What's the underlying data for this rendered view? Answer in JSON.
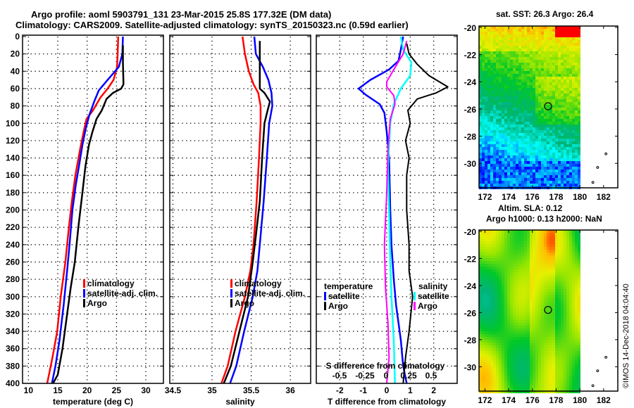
{
  "header": {
    "title_line1": "Argo profile: aoml 5903791_131 23-Mar-2015 25.8S 177.32E (DM data)",
    "title_line2": "Climatology: CARS2009. Satellite-adjusted climatology: synTS_20150323.nc (0.59d earlier)"
  },
  "credit": "©IMOS 14-Dec-2018 04:04:40",
  "colors": {
    "climatology": "#ff0000",
    "satellite": "#0000ff",
    "argo": "#000000",
    "sal_satellite": "#00ffff",
    "sal_argo": "#ff00ff"
  },
  "chart_data": [
    {
      "type": "line",
      "name": "temperature-profile",
      "xlabel": "temperature (deg C)",
      "ylabel": "",
      "xlim": [
        9,
        33
      ],
      "ylim": [
        400,
        0
      ],
      "xticks": [
        10,
        15,
        20,
        25,
        30
      ],
      "yticks": [
        0,
        20,
        40,
        60,
        80,
        100,
        120,
        140,
        160,
        180,
        200,
        220,
        240,
        260,
        280,
        300,
        320,
        340,
        360,
        380,
        400
      ],
      "grid": true,
      "legend": {
        "placement": "lower-right",
        "entries": [
          "climatology",
          "satellite-adj. clim.",
          "Argo"
        ]
      },
      "series": [
        {
          "name": "climatology",
          "color_key": "climatology",
          "points": [
            [
              25.3,
              0
            ],
            [
              25.2,
              20
            ],
            [
              25.1,
              35
            ],
            [
              24.5,
              50
            ],
            [
              23.5,
              60
            ],
            [
              22.3,
              70
            ],
            [
              21.0,
              85
            ],
            [
              19.9,
              95
            ],
            [
              19.4,
              110
            ],
            [
              18.8,
              130
            ],
            [
              18.0,
              160
            ],
            [
              17.4,
              190
            ],
            [
              16.9,
              220
            ],
            [
              16.3,
              260
            ],
            [
              15.5,
              300
            ],
            [
              14.9,
              340
            ],
            [
              14.1,
              370
            ],
            [
              13.2,
              400
            ]
          ]
        },
        {
          "name": "satellite-adj. clim.",
          "color_key": "satellite",
          "points": [
            [
              26.1,
              0
            ],
            [
              26.0,
              20
            ],
            [
              25.4,
              35
            ],
            [
              23.5,
              50
            ],
            [
              22.0,
              62
            ],
            [
              21.2,
              75
            ],
            [
              20.4,
              90
            ],
            [
              19.8,
              105
            ],
            [
              19.2,
              125
            ],
            [
              18.6,
              150
            ],
            [
              18.1,
              170
            ],
            [
              17.5,
              200
            ],
            [
              17.0,
              240
            ],
            [
              16.6,
              270
            ],
            [
              16.0,
              310
            ],
            [
              15.3,
              350
            ],
            [
              14.6,
              380
            ],
            [
              14.0,
              400
            ]
          ]
        },
        {
          "name": "Argo",
          "color_key": "argo",
          "points": [
            [
              26.1,
              10
            ],
            [
              26.1,
              30
            ],
            [
              26.2,
              55
            ],
            [
              25.8,
              60
            ],
            [
              24.4,
              65
            ],
            [
              23.3,
              72
            ],
            [
              22.5,
              85
            ],
            [
              21.6,
              95
            ],
            [
              20.9,
              110
            ],
            [
              20.3,
              125
            ],
            [
              19.7,
              150
            ],
            [
              19.2,
              180
            ],
            [
              18.5,
              220
            ],
            [
              17.9,
              260
            ],
            [
              17.2,
              290
            ],
            [
              16.6,
              320
            ],
            [
              15.8,
              360
            ],
            [
              15.0,
              390
            ],
            [
              14.2,
              400
            ]
          ]
        }
      ]
    },
    {
      "type": "line",
      "name": "salinity-profile",
      "xlabel": "salinity",
      "ylabel": "",
      "xlim": [
        34.46,
        36.26
      ],
      "ylim": [
        400,
        0
      ],
      "xticks": [
        34.5,
        35,
        35.5,
        36
      ],
      "grid": true,
      "legend": {
        "placement": "lower-right",
        "entries": [
          "climatology",
          "satellite-adj. clim.",
          "Argo"
        ]
      },
      "series": [
        {
          "name": "climatology",
          "color_key": "climatology",
          "points": [
            [
              35.39,
              0
            ],
            [
              35.42,
              20
            ],
            [
              35.47,
              40
            ],
            [
              35.53,
              55
            ],
            [
              35.59,
              65
            ],
            [
              35.62,
              80
            ],
            [
              35.62,
              100
            ],
            [
              35.6,
              140
            ],
            [
              35.57,
              190
            ],
            [
              35.53,
              240
            ],
            [
              35.49,
              270
            ],
            [
              35.42,
              300
            ],
            [
              35.3,
              340
            ],
            [
              35.2,
              380
            ],
            [
              35.12,
              400
            ]
          ]
        },
        {
          "name": "satellite-adj. clim.",
          "color_key": "satellite",
          "points": [
            [
              35.54,
              0
            ],
            [
              35.56,
              20
            ],
            [
              35.65,
              35
            ],
            [
              35.72,
              50
            ],
            [
              35.76,
              65
            ],
            [
              35.77,
              80
            ],
            [
              35.73,
              100
            ],
            [
              35.7,
              140
            ],
            [
              35.66,
              190
            ],
            [
              35.62,
              230
            ],
            [
              35.58,
              270
            ],
            [
              35.52,
              300
            ],
            [
              35.41,
              340
            ],
            [
              35.31,
              380
            ],
            [
              35.23,
              400
            ]
          ]
        },
        {
          "name": "Argo",
          "color_key": "argo",
          "points": [
            [
              35.61,
              5
            ],
            [
              35.61,
              20
            ],
            [
              35.61,
              40
            ],
            [
              35.61,
              60
            ],
            [
              35.67,
              65
            ],
            [
              35.74,
              75
            ],
            [
              35.71,
              85
            ],
            [
              35.67,
              100
            ],
            [
              35.64,
              140
            ],
            [
              35.61,
              190
            ],
            [
              35.56,
              230
            ],
            [
              35.52,
              260
            ],
            [
              35.46,
              300
            ],
            [
              35.35,
              340
            ],
            [
              35.24,
              380
            ],
            [
              35.15,
              400
            ]
          ]
        }
      ]
    },
    {
      "type": "line",
      "name": "difference-profile",
      "xlabel": "T difference from climatology",
      "xlim": [
        -3,
        3
      ],
      "ylim": [
        400,
        0
      ],
      "xticks": [
        -2,
        -1,
        0,
        1,
        2
      ],
      "secondary_xlabel": "S difference from climatology",
      "secondary_xticks": [
        "-0.5",
        "-0.25",
        "0",
        "0.25",
        "0.5"
      ],
      "grid": true,
      "legend": {
        "placement": "lower-center",
        "temperature_title": "temperature",
        "temperature_entries": [
          "satellite",
          "Argo"
        ],
        "salinity_title": "salinity",
        "salinity_entries": [
          "satellite",
          "Argo"
        ]
      },
      "series": [
        {
          "name": "temperature satellite",
          "color_key": "satellite",
          "points": [
            [
              0.7,
              0
            ],
            [
              0.6,
              15
            ],
            [
              0.5,
              28
            ],
            [
              0.1,
              38
            ],
            [
              -0.7,
              50
            ],
            [
              -1.2,
              60
            ],
            [
              -0.9,
              67
            ],
            [
              -0.3,
              78
            ],
            [
              -0.1,
              88
            ],
            [
              0.0,
              110
            ],
            [
              0.1,
              140
            ],
            [
              0.15,
              200
            ],
            [
              0.2,
              240
            ],
            [
              0.3,
              280
            ],
            [
              0.4,
              310
            ],
            [
              0.6,
              350
            ],
            [
              0.7,
              380
            ],
            [
              0.85,
              400
            ]
          ]
        },
        {
          "name": "temperature Argo",
          "color_key": "argo",
          "points": [
            [
              0.85,
              8
            ],
            [
              0.95,
              20
            ],
            [
              1.3,
              32
            ],
            [
              1.8,
              45
            ],
            [
              2.6,
              58
            ],
            [
              2.1,
              65
            ],
            [
              1.3,
              72
            ],
            [
              0.9,
              85
            ],
            [
              1.0,
              100
            ],
            [
              0.8,
              120
            ],
            [
              0.95,
              140
            ],
            [
              0.85,
              160
            ],
            [
              0.85,
              200
            ],
            [
              0.95,
              240
            ],
            [
              0.95,
              270
            ],
            [
              1.1,
              300
            ],
            [
              0.95,
              340
            ],
            [
              0.8,
              370
            ],
            [
              0.7,
              400
            ]
          ]
        },
        {
          "name": "salinity satellite",
          "color_key": "sal_satellite",
          "points": [
            [
              0.6,
              0
            ],
            [
              0.7,
              15
            ],
            [
              1.05,
              30
            ],
            [
              1.0,
              45
            ],
            [
              0.6,
              60
            ],
            [
              0.3,
              78
            ],
            [
              0.15,
              100
            ],
            [
              0.05,
              150
            ],
            [
              0.1,
              200
            ],
            [
              0.15,
              260
            ],
            [
              0.2,
              300
            ],
            [
              0.3,
              350
            ],
            [
              0.35,
              400
            ]
          ]
        },
        {
          "name": "salinity Argo",
          "color_key": "sal_argo",
          "points": [
            [
              0.85,
              5
            ],
            [
              0.7,
              20
            ],
            [
              0.3,
              38
            ],
            [
              0.0,
              52
            ],
            [
              0.0,
              58
            ],
            [
              0.3,
              68
            ],
            [
              0.35,
              78
            ],
            [
              0.15,
              95
            ],
            [
              0.05,
              130
            ],
            [
              0.0,
              180
            ],
            [
              -0.1,
              240
            ],
            [
              -0.05,
              290
            ],
            [
              0.05,
              330
            ],
            [
              0.1,
              370
            ],
            [
              0.0,
              400
            ]
          ]
        }
      ]
    },
    {
      "type": "heatmap",
      "name": "sst-map",
      "title": "sat. SST: 26.3 Argo: 26.4",
      "xlim": [
        171.5,
        183.2
      ],
      "ylim": [
        -31.8,
        -19.9
      ],
      "xticks": [
        172,
        174,
        176,
        178,
        180,
        182
      ],
      "yticks": [
        -20,
        -22,
        -24,
        -26,
        -28,
        -30
      ],
      "argo_position": [
        177.32,
        -25.8
      ]
    },
    {
      "type": "heatmap",
      "name": "sla-map",
      "title_line1": "Altim. SLA: 0.12",
      "title_line2": "Argo h1000: 0.13 h2000: NaN",
      "xlim": [
        171.5,
        183.2
      ],
      "ylim": [
        -31.8,
        -19.9
      ],
      "xticks": [
        172,
        174,
        176,
        178,
        180,
        182
      ],
      "yticks": [
        -20,
        -22,
        -24,
        -26,
        -28,
        -30
      ],
      "argo_position": [
        177.32,
        -25.8
      ]
    }
  ]
}
